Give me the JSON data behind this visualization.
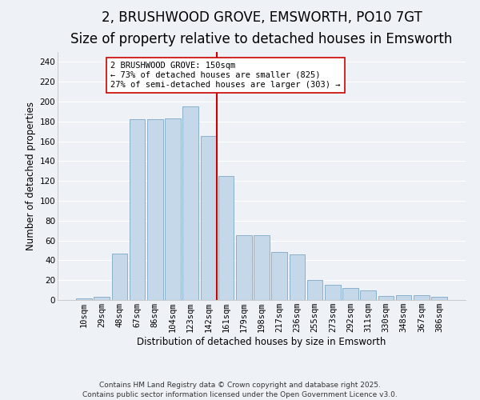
{
  "title": "2, BRUSHWOOD GROVE, EMSWORTH, PO10 7GT",
  "subtitle": "Size of property relative to detached houses in Emsworth",
  "xlabel": "Distribution of detached houses by size in Emsworth",
  "ylabel": "Number of detached properties",
  "categories": [
    "10sqm",
    "29sqm",
    "48sqm",
    "67sqm",
    "86sqm",
    "104sqm",
    "123sqm",
    "142sqm",
    "161sqm",
    "179sqm",
    "198sqm",
    "217sqm",
    "236sqm",
    "255sqm",
    "273sqm",
    "292sqm",
    "311sqm",
    "330sqm",
    "348sqm",
    "367sqm",
    "386sqm"
  ],
  "values": [
    2,
    3,
    47,
    182,
    182,
    183,
    195,
    165,
    125,
    65,
    65,
    48,
    46,
    20,
    15,
    12,
    10,
    4,
    5,
    5,
    3
  ],
  "bar_color": "#c5d8ea",
  "bar_edge_color": "#8ab0cc",
  "annotation_line1": "2 BRUSHWOOD GROVE: 150sqm",
  "annotation_line2": "← 73% of detached houses are smaller (825)",
  "annotation_line3": "27% of semi-detached houses are larger (303) →",
  "vline_color": "#cc0000",
  "background_color": "#eef2f7",
  "grid_color": "#ffffff",
  "footer": "Contains HM Land Registry data © Crown copyright and database right 2025.\nContains public sector information licensed under the Open Government Licence v3.0.",
  "ylim": [
    0,
    250
  ],
  "yticks": [
    0,
    20,
    40,
    60,
    80,
    100,
    120,
    140,
    160,
    180,
    200,
    220,
    240
  ],
  "title_fontsize": 12,
  "subtitle_fontsize": 10,
  "label_fontsize": 8.5,
  "tick_fontsize": 7.5,
  "footer_fontsize": 6.5,
  "annotation_fontsize": 7.5
}
